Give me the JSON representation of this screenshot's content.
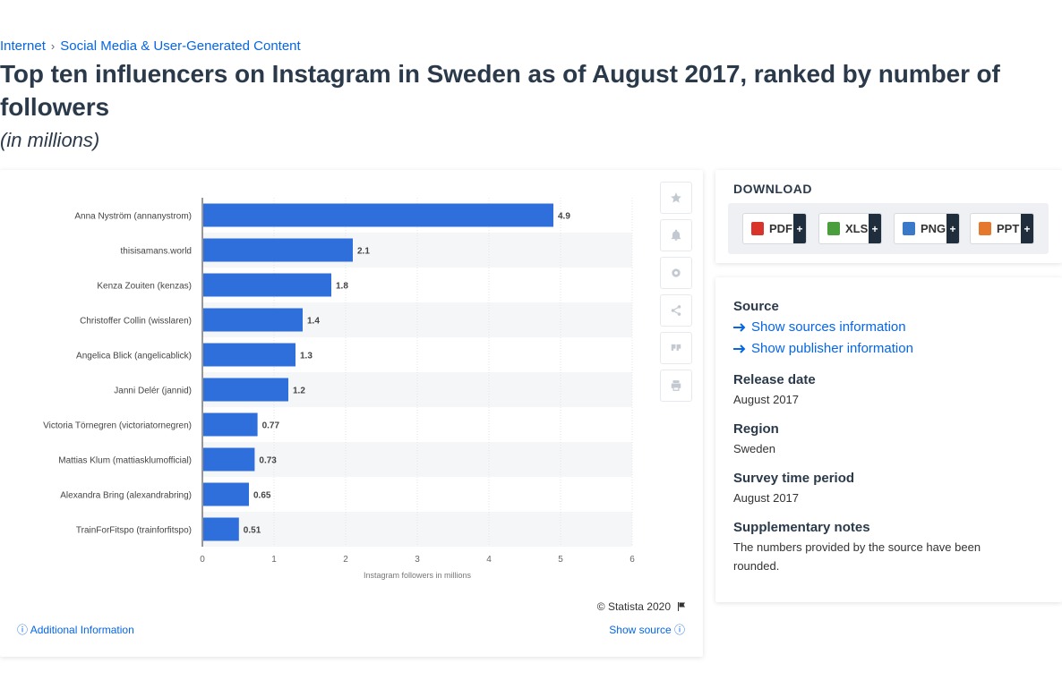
{
  "breadcrumb": {
    "items": [
      "Internet",
      "Social Media & User-Generated Content"
    ]
  },
  "title": "Top ten influencers on Instagram in Sweden as of August 2017, ranked by number of followers",
  "subtitle": "(in millions)",
  "chart_data": {
    "type": "bar",
    "orientation": "horizontal",
    "categories": [
      "Anna Nyström (annanystrom)",
      "thisisamans.world",
      "Kenza Zouiten (kenzas)",
      "Christoffer Collin (wisslaren)",
      "Angelica Blick (angelicablick)",
      "Janni Delér (jannid)",
      "Victoria Törnegren (victoriatornegren)",
      "Mattias Klum (mattiasklumofficial)",
      "Alexandra Bring (alexandrabring)",
      "TrainForFitspo (trainforfitspo)"
    ],
    "values": [
      4.9,
      2.1,
      1.8,
      1.4,
      1.3,
      1.2,
      0.77,
      0.73,
      0.65,
      0.51
    ],
    "value_labels": [
      "4.9",
      "2.1",
      "1.8",
      "1.4",
      "1.3",
      "1.2",
      "0.77",
      "0.73",
      "0.65",
      "0.51"
    ],
    "xlabel": "Instagram followers in millions",
    "xlim": [
      0,
      6
    ],
    "xticks": [
      "0",
      "1",
      "2",
      "3",
      "4",
      "5",
      "6"
    ],
    "grid": true,
    "bar_color": "#2f6fdc"
  },
  "tools": {
    "icons": [
      "star-icon",
      "bell-icon",
      "gear-icon",
      "share-icon",
      "quote-icon",
      "print-icon"
    ]
  },
  "footer": {
    "copyright": "© Statista 2020",
    "additional_info": "Additional Information",
    "show_source": "Show source"
  },
  "download": {
    "title": "DOWNLOAD",
    "buttons": [
      {
        "label": "PDF",
        "color": "#d9342b"
      },
      {
        "label": "XLS",
        "color": "#4a9e3b"
      },
      {
        "label": "PNG",
        "color": "#3a78c8"
      },
      {
        "label": "PPT",
        "color": "#e5782d"
      }
    ],
    "plus": "+"
  },
  "info": {
    "source_label": "Source",
    "show_sources": "Show sources information",
    "show_publisher": "Show publisher information",
    "release_label": "Release date",
    "release_value": "August 2017",
    "region_label": "Region",
    "region_value": "Sweden",
    "survey_label": "Survey time period",
    "survey_value": "August 2017",
    "notes_label": "Supplementary notes",
    "notes_value": "The numbers provided by the source have been rounded."
  },
  "colors": {
    "link": "#0666e5",
    "text": "#2b3a4a",
    "bar": "#2f6fdc"
  }
}
